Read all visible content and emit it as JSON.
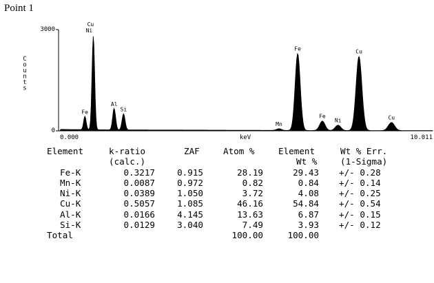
{
  "page_title": "Point 1",
  "chart_data": {
    "type": "line",
    "title": "",
    "xlabel": "keV",
    "ylabel": "Counts",
    "x_range": [
      0.0,
      10.011
    ],
    "x_tick_labels": [
      "0.000",
      "10.011"
    ],
    "ylim": [
      0,
      3000
    ],
    "y_tick_labels": [
      "0",
      "3000"
    ],
    "grid": false,
    "color": "#000000",
    "peaks": [
      {
        "label": "Fe",
        "energy": 0.705,
        "counts": 400
      },
      {
        "label": "Cu Ni",
        "energy": 0.93,
        "counts": 2780
      },
      {
        "label": "Al",
        "energy": 1.487,
        "counts": 640
      },
      {
        "label": "Si",
        "energy": 1.74,
        "counts": 480
      },
      {
        "label": "Mn",
        "energy": 5.9,
        "counts": 50
      },
      {
        "label": "Fe",
        "energy": 6.4,
        "counts": 2280
      },
      {
        "label": "Fe",
        "energy": 7.06,
        "counts": 280
      },
      {
        "label": "Ni",
        "energy": 7.48,
        "counts": 160
      },
      {
        "label": "Cu",
        "energy": 8.04,
        "counts": 2200
      },
      {
        "label": "Cu",
        "energy": 8.91,
        "counts": 240
      }
    ]
  },
  "table": {
    "header1": [
      "Element",
      "k-ratio",
      "ZAF",
      "Atom %",
      "Element",
      "Wt % Err."
    ],
    "header2": [
      "",
      "(calc.)",
      "",
      "",
      "Wt %",
      "(1-Sigma)"
    ],
    "rows": [
      [
        "Fe-K",
        "0.3217",
        "0.915",
        "28.19",
        "29.43",
        "+/- 0.28"
      ],
      [
        "Mn-K",
        "0.0087",
        "0.972",
        "0.82",
        "0.84",
        "+/- 0.14"
      ],
      [
        "Ni-K",
        "0.0389",
        "1.050",
        "3.72",
        "4.08",
        "+/- 0.25"
      ],
      [
        "Cu-K",
        "0.5057",
        "1.085",
        "46.16",
        "54.84",
        "+/- 0.54"
      ],
      [
        "Al-K",
        "0.0166",
        "4.145",
        "13.63",
        "6.87",
        "+/- 0.15"
      ],
      [
        "Si-K",
        "0.0129",
        "3.040",
        "7.49",
        "3.93",
        "+/- 0.12"
      ]
    ],
    "total_label": "Total",
    "total_atom": "100.00",
    "total_wt": "100.00"
  }
}
